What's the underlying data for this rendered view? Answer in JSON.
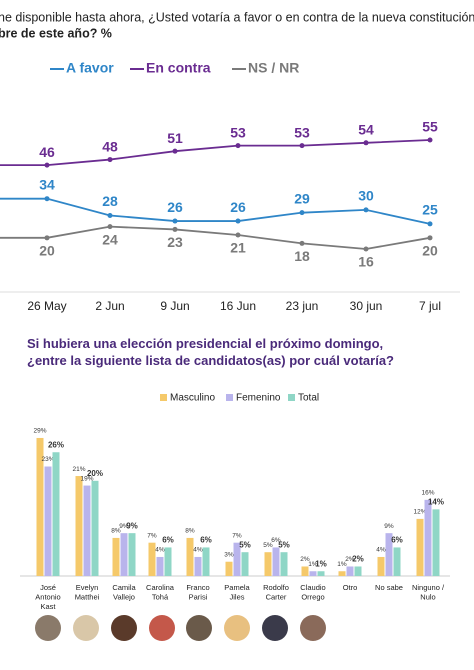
{
  "question": [
    "ne disponible hasta ahora, ¿Usted votaría a favor o en contra de la nueva constitución",
    "bre de este año? %"
  ],
  "chart_data": [
    {
      "type": "line",
      "categories": [
        "26 May",
        "2 Jun",
        "9 Jun",
        "16 Jun",
        "23 jun",
        "30 jun",
        "7 jul"
      ],
      "series": [
        {
          "name": "A favor",
          "color": "#2f86c8",
          "values": [
            34,
            28,
            26,
            26,
            29,
            30,
            25
          ]
        },
        {
          "name": "En contra",
          "color": "#6a2c91",
          "values": [
            46,
            48,
            51,
            53,
            53,
            54,
            55
          ]
        },
        {
          "name": "NS / NR",
          "color": "#7a7a7a",
          "values": [
            20,
            24,
            23,
            21,
            18,
            16,
            20
          ]
        }
      ]
    },
    {
      "type": "bar",
      "title": "Si hubiera una elección presidencial el próximo domingo, ¿entre la siguiente lista de candidatos(as) por cuál votaría?",
      "categories": [
        "José Antonio Kast",
        "Evelyn Matthei",
        "Camila Vallejo",
        "Carolina Tohá",
        "Franco Parisi",
        "Pamela Jiles",
        "Rodolfo Carter",
        "Claudio Orrego",
        "Otro",
        "No sabe",
        "Ninguno / Nulo"
      ],
      "series": [
        {
          "name": "Masculino",
          "color": "#f5c96a",
          "values": [
            29,
            21,
            8,
            7,
            8,
            3,
            5,
            2,
            1,
            4,
            12
          ],
          "value_labels": [
            "29%",
            "21%",
            "8%",
            "7%",
            "8%",
            "3%",
            "5%",
            "2%",
            "1%",
            "4%",
            "12%"
          ]
        },
        {
          "name": "Femenino",
          "color": "#b9b4ec",
          "values": [
            23,
            19,
            9,
            4,
            4,
            7,
            6,
            1,
            2,
            9,
            16
          ],
          "value_labels": [
            "23%",
            "19%",
            "9%",
            "4%",
            "4%",
            "7%",
            "6%",
            "1%",
            "2%",
            "9%",
            "16%"
          ]
        },
        {
          "name": "Total",
          "color": "#8fd6c6",
          "values": [
            26,
            20,
            9,
            6,
            6,
            5,
            5,
            1,
            2,
            6,
            14
          ],
          "value_labels": [
            "26%",
            "20%",
            "9%",
            "6%",
            "6%",
            "5%",
            "5%",
            "1%",
            "2%",
            "6%",
            "14%"
          ]
        }
      ]
    }
  ]
}
